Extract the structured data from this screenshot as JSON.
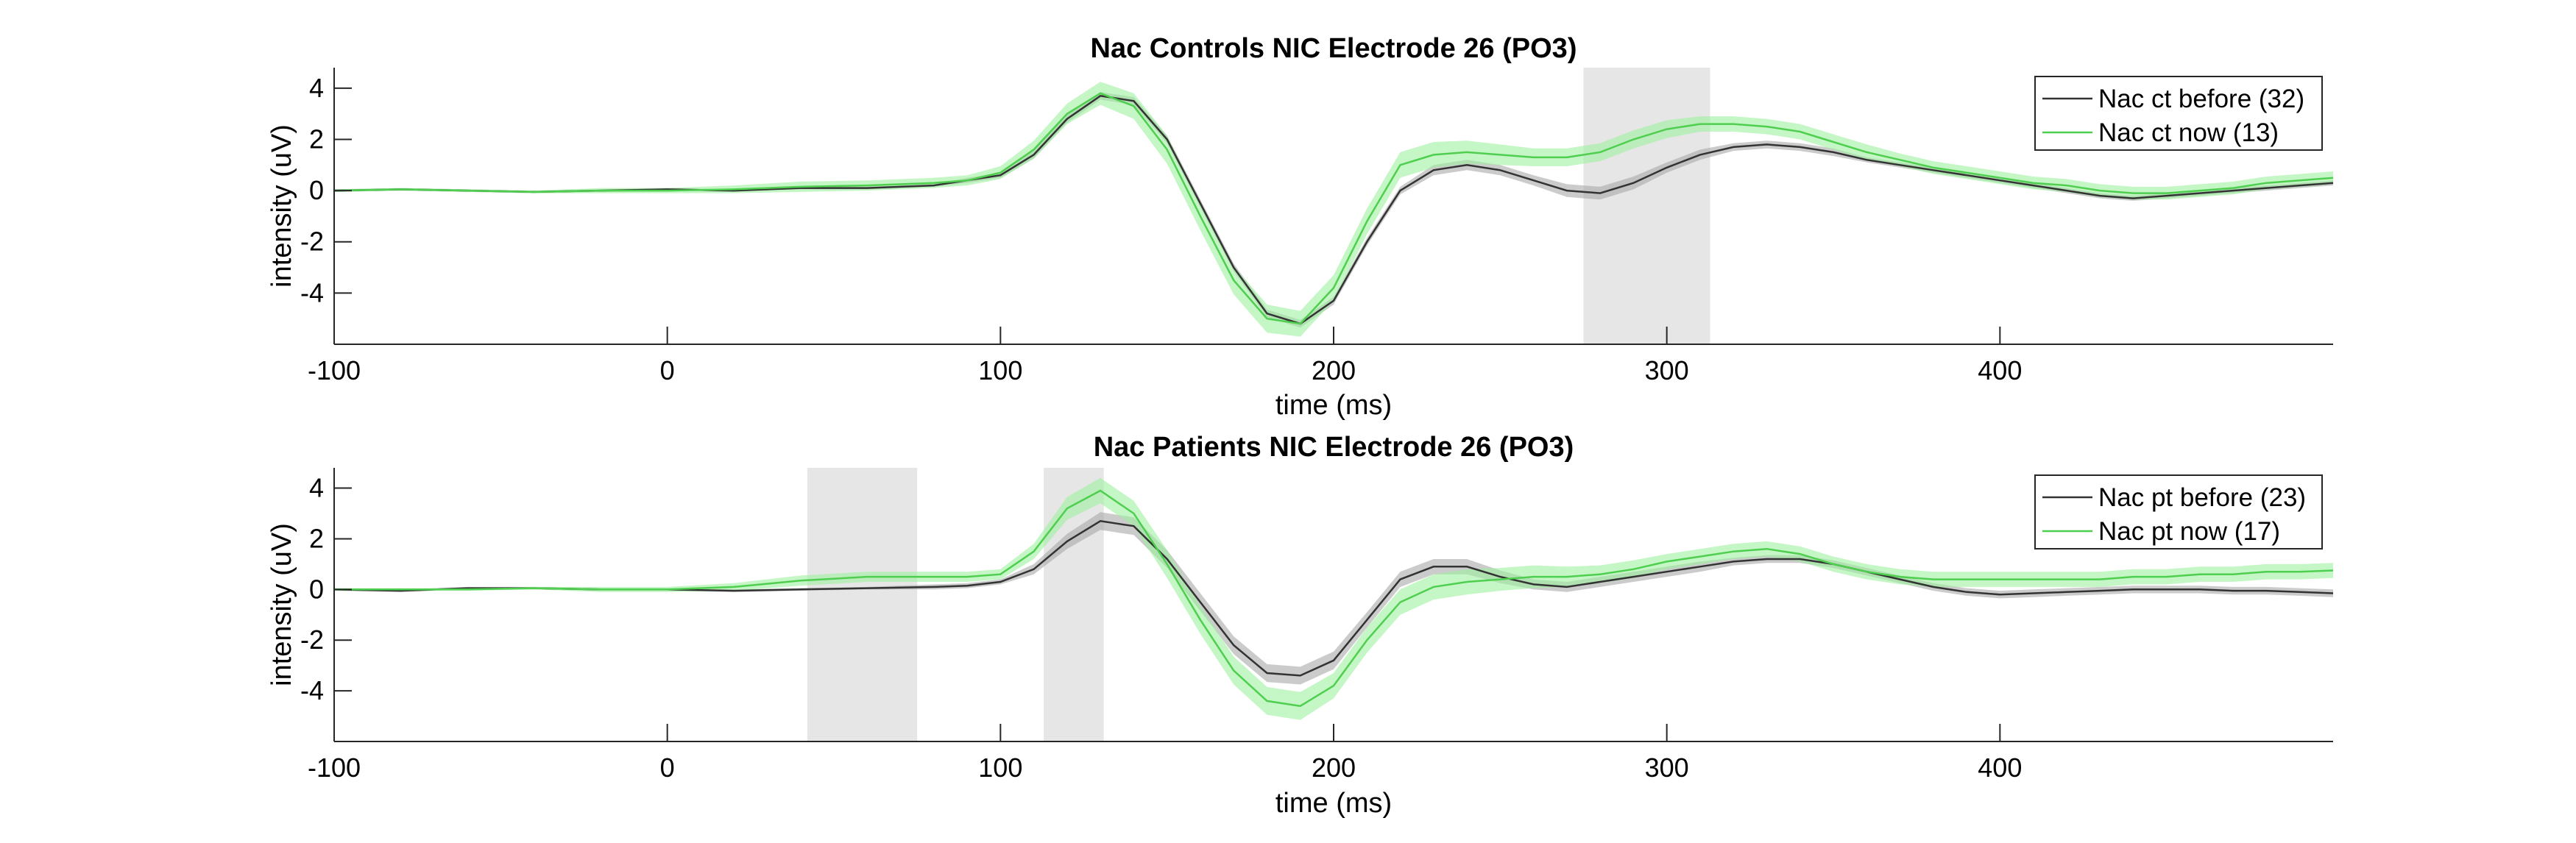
{
  "chart_data": [
    {
      "type": "line",
      "title": "Nac Controls NIC Electrode 26 (PO3)",
      "xlabel": "time (ms)",
      "ylabel": "intensity (uV)",
      "xlim": [
        -100,
        500
      ],
      "ylim": [
        -6,
        4.8
      ],
      "xticks": [
        -100,
        0,
        100,
        200,
        300,
        400
      ],
      "xtick_labels": [
        "-100",
        "0",
        "100",
        "200",
        "300",
        "400"
      ],
      "yticks": [
        -4,
        -2,
        0,
        2,
        4
      ],
      "ytick_labels": [
        "-4",
        "-2",
        "0",
        "2",
        "4"
      ],
      "grid": false,
      "legend_position": "top-right",
      "shaded_regions": [
        [
          275,
          313
        ]
      ],
      "shade_color": "#e6e6e6",
      "x": [
        -100,
        -80,
        -60,
        -40,
        -20,
        0,
        20,
        40,
        60,
        80,
        90,
        100,
        110,
        120,
        130,
        140,
        150,
        160,
        170,
        180,
        190,
        200,
        210,
        220,
        230,
        240,
        250,
        260,
        270,
        280,
        290,
        300,
        310,
        320,
        330,
        340,
        350,
        360,
        370,
        380,
        390,
        400,
        410,
        420,
        430,
        440,
        450,
        460,
        470,
        480,
        490,
        500
      ],
      "series": [
        {
          "name": "Nac ct before (32)",
          "color": "#333333",
          "band_color": "#a9a9a9",
          "values": [
            0,
            0.05,
            0,
            -0.05,
            0,
            0.05,
            0,
            0.1,
            0.1,
            0.2,
            0.4,
            0.6,
            1.4,
            2.8,
            3.7,
            3.5,
            2.0,
            -0.5,
            -3.0,
            -4.8,
            -5.2,
            -4.3,
            -2.0,
            0.0,
            0.8,
            1.0,
            0.8,
            0.4,
            0.0,
            -0.1,
            0.3,
            0.9,
            1.4,
            1.7,
            1.8,
            1.7,
            1.5,
            1.2,
            1.0,
            0.8,
            0.6,
            0.4,
            0.2,
            0.0,
            -0.2,
            -0.3,
            -0.2,
            -0.1,
            0.0,
            0.1,
            0.2,
            0.3
          ],
          "band": [
            0.05,
            0.05,
            0.05,
            0.05,
            0.05,
            0.05,
            0.05,
            0.05,
            0.05,
            0.05,
            0.1,
            0.1,
            0.15,
            0.15,
            0.15,
            0.15,
            0.15,
            0.15,
            0.15,
            0.15,
            0.15,
            0.15,
            0.15,
            0.15,
            0.2,
            0.2,
            0.2,
            0.2,
            0.25,
            0.25,
            0.25,
            0.2,
            0.2,
            0.15,
            0.15,
            0.15,
            0.15,
            0.1,
            0.1,
            0.1,
            0.1,
            0.1,
            0.1,
            0.1,
            0.1,
            0.1,
            0.1,
            0.1,
            0.1,
            0.1,
            0.1,
            0.1
          ]
        },
        {
          "name": "Nac ct now (13)",
          "color": "#4fcf4f",
          "band_color": "#9ef09e",
          "values": [
            0,
            0.05,
            0,
            -0.05,
            0,
            0,
            0.05,
            0.15,
            0.2,
            0.3,
            0.4,
            0.7,
            1.6,
            3.0,
            3.8,
            3.3,
            1.6,
            -1.0,
            -3.5,
            -5.0,
            -5.2,
            -3.8,
            -1.2,
            1.0,
            1.4,
            1.5,
            1.4,
            1.3,
            1.3,
            1.5,
            2.0,
            2.4,
            2.6,
            2.6,
            2.5,
            2.3,
            1.9,
            1.5,
            1.2,
            0.9,
            0.7,
            0.5,
            0.3,
            0.2,
            0.0,
            -0.1,
            -0.1,
            0.0,
            0.1,
            0.3,
            0.4,
            0.5
          ],
          "band": [
            0.05,
            0.05,
            0.05,
            0.05,
            0.1,
            0.1,
            0.15,
            0.2,
            0.2,
            0.2,
            0.2,
            0.25,
            0.35,
            0.4,
            0.45,
            0.5,
            0.55,
            0.55,
            0.55,
            0.55,
            0.5,
            0.5,
            0.5,
            0.5,
            0.5,
            0.45,
            0.4,
            0.35,
            0.35,
            0.35,
            0.35,
            0.35,
            0.3,
            0.3,
            0.3,
            0.3,
            0.3,
            0.3,
            0.25,
            0.25,
            0.25,
            0.25,
            0.25,
            0.25,
            0.25,
            0.25,
            0.25,
            0.25,
            0.25,
            0.25,
            0.25,
            0.25
          ]
        }
      ]
    },
    {
      "type": "line",
      "title": "Nac Patients NIC Electrode 26 (PO3)",
      "xlabel": "time (ms)",
      "ylabel": "intensity (uV)",
      "xlim": [
        -100,
        500
      ],
      "ylim": [
        -6,
        4.8
      ],
      "xticks": [
        -100,
        0,
        100,
        200,
        300,
        400
      ],
      "xtick_labels": [
        "-100",
        "0",
        "100",
        "200",
        "300",
        "400"
      ],
      "yticks": [
        -4,
        -2,
        0,
        2,
        4
      ],
      "ytick_labels": [
        "-4",
        "-2",
        "0",
        "2",
        "4"
      ],
      "grid": false,
      "legend_position": "top-right",
      "shaded_regions": [
        [
          42,
          75
        ],
        [
          113,
          131
        ]
      ],
      "shade_color": "#e6e6e6",
      "x": [
        -100,
        -80,
        -60,
        -40,
        -20,
        0,
        20,
        40,
        60,
        80,
        90,
        100,
        110,
        120,
        130,
        140,
        150,
        160,
        170,
        180,
        190,
        200,
        210,
        220,
        230,
        240,
        250,
        260,
        270,
        280,
        290,
        300,
        310,
        320,
        330,
        340,
        350,
        360,
        370,
        380,
        390,
        400,
        410,
        420,
        430,
        440,
        450,
        460,
        470,
        480,
        490,
        500
      ],
      "series": [
        {
          "name": "Nac pt before (23)",
          "color": "#333333",
          "band_color": "#a9a9a9",
          "values": [
            0,
            -0.05,
            0.05,
            0.05,
            0,
            0,
            -0.05,
            0,
            0.05,
            0.1,
            0.15,
            0.3,
            0.8,
            1.9,
            2.7,
            2.5,
            1.2,
            -0.5,
            -2.2,
            -3.3,
            -3.4,
            -2.8,
            -1.2,
            0.4,
            0.9,
            0.9,
            0.5,
            0.2,
            0.1,
            0.3,
            0.5,
            0.7,
            0.9,
            1.1,
            1.2,
            1.2,
            1.0,
            0.7,
            0.4,
            0.1,
            -0.1,
            -0.2,
            -0.15,
            -0.1,
            -0.05,
            0,
            0,
            0,
            -0.05,
            -0.05,
            -0.1,
            -0.15
          ],
          "band": [
            0.05,
            0.05,
            0.05,
            0.05,
            0.05,
            0.05,
            0.05,
            0.05,
            0.05,
            0.1,
            0.1,
            0.1,
            0.2,
            0.3,
            0.35,
            0.35,
            0.35,
            0.35,
            0.35,
            0.35,
            0.35,
            0.35,
            0.3,
            0.3,
            0.3,
            0.3,
            0.25,
            0.2,
            0.2,
            0.2,
            0.2,
            0.2,
            0.2,
            0.15,
            0.15,
            0.15,
            0.15,
            0.15,
            0.15,
            0.15,
            0.15,
            0.15,
            0.15,
            0.15,
            0.15,
            0.15,
            0.15,
            0.15,
            0.15,
            0.15,
            0.15,
            0.15
          ]
        },
        {
          "name": "Nac pt now (17)",
          "color": "#4fcf4f",
          "band_color": "#9ef09e",
          "values": [
            0,
            0,
            0,
            0.05,
            0,
            0,
            0.1,
            0.35,
            0.5,
            0.5,
            0.5,
            0.6,
            1.5,
            3.2,
            3.9,
            3.0,
            1.0,
            -1.2,
            -3.2,
            -4.4,
            -4.6,
            -3.8,
            -2.0,
            -0.5,
            0.1,
            0.3,
            0.4,
            0.5,
            0.5,
            0.6,
            0.8,
            1.1,
            1.3,
            1.5,
            1.6,
            1.4,
            1.0,
            0.7,
            0.5,
            0.4,
            0.4,
            0.4,
            0.4,
            0.4,
            0.4,
            0.5,
            0.5,
            0.6,
            0.6,
            0.7,
            0.7,
            0.75
          ],
          "band": [
            0.05,
            0.05,
            0.05,
            0.05,
            0.1,
            0.1,
            0.15,
            0.2,
            0.2,
            0.2,
            0.2,
            0.2,
            0.3,
            0.45,
            0.5,
            0.5,
            0.55,
            0.55,
            0.55,
            0.55,
            0.55,
            0.5,
            0.5,
            0.5,
            0.5,
            0.5,
            0.45,
            0.45,
            0.4,
            0.35,
            0.35,
            0.3,
            0.3,
            0.3,
            0.3,
            0.3,
            0.3,
            0.3,
            0.3,
            0.3,
            0.3,
            0.3,
            0.3,
            0.3,
            0.3,
            0.3,
            0.3,
            0.3,
            0.3,
            0.3,
            0.3,
            0.3
          ]
        }
      ]
    }
  ]
}
